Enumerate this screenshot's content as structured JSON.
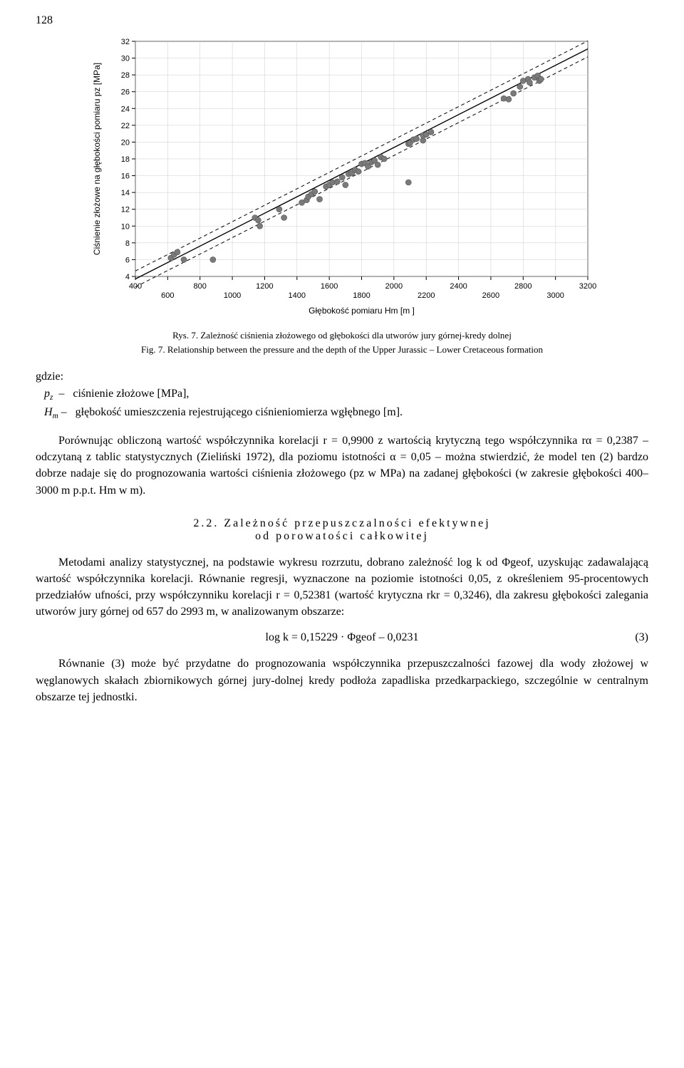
{
  "page_number": "128",
  "chart": {
    "type": "scatter-with-regression",
    "ylabel": "Ciśnienie złożowe na głębokości pomiaru pz [MPa]",
    "xlabel": "Głębokość pomiaru Hm [m ]",
    "ylim": [
      4,
      32
    ],
    "yticks": [
      4,
      6,
      8,
      10,
      12,
      14,
      16,
      18,
      20,
      22,
      24,
      26,
      28,
      30,
      32
    ],
    "xlim": [
      400,
      3200
    ],
    "xticks_top": [
      400,
      800,
      1200,
      1600,
      2000,
      2400,
      2800,
      3200
    ],
    "xticks_bottom": [
      600,
      1000,
      1400,
      1800,
      2200,
      2600,
      3000
    ],
    "background_color": "#ffffff",
    "grid_color": "#cccccc",
    "axis_color": "#000000",
    "marker_color": "#7a7a7a",
    "marker_stroke": "#555555",
    "line_color": "#000000",
    "band_color": "#000000",
    "marker_radius": 4,
    "label_fontsize": 12,
    "tick_fontsize": 11,
    "points": [
      [
        620,
        6.2
      ],
      [
        640,
        6.6
      ],
      [
        660,
        6.9
      ],
      [
        700,
        6.0
      ],
      [
        880,
        6.0
      ],
      [
        1140,
        11.0
      ],
      [
        1160,
        10.7
      ],
      [
        1170,
        10.0
      ],
      [
        1290,
        12.0
      ],
      [
        1320,
        11.0
      ],
      [
        1430,
        12.8
      ],
      [
        1460,
        13.1
      ],
      [
        1470,
        13.5
      ],
      [
        1490,
        13.8
      ],
      [
        1510,
        14.1
      ],
      [
        1540,
        13.2
      ],
      [
        1580,
        14.7
      ],
      [
        1600,
        14.9
      ],
      [
        1620,
        15.2
      ],
      [
        1650,
        15.3
      ],
      [
        1680,
        15.8
      ],
      [
        1700,
        14.9
      ],
      [
        1720,
        16.2
      ],
      [
        1740,
        16.3
      ],
      [
        1760,
        16.7
      ],
      [
        1780,
        16.5
      ],
      [
        1800,
        17.4
      ],
      [
        1820,
        17.5
      ],
      [
        1840,
        17.1
      ],
      [
        1860,
        17.6
      ],
      [
        1880,
        17.8
      ],
      [
        1900,
        17.3
      ],
      [
        1920,
        18.2
      ],
      [
        1940,
        18.0
      ],
      [
        2090,
        15.2
      ],
      [
        2090,
        19.8
      ],
      [
        2100,
        19.9
      ],
      [
        2120,
        20.3
      ],
      [
        2140,
        20.4
      ],
      [
        2180,
        20.2
      ],
      [
        2180,
        20.8
      ],
      [
        2200,
        20.9
      ],
      [
        2230,
        21.2
      ],
      [
        2680,
        25.2
      ],
      [
        2710,
        25.1
      ],
      [
        2740,
        25.8
      ],
      [
        2780,
        26.6
      ],
      [
        2800,
        27.3
      ],
      [
        2830,
        27.5
      ],
      [
        2840,
        27.1
      ],
      [
        2870,
        27.7
      ],
      [
        2890,
        27.9
      ],
      [
        2900,
        27.3
      ],
      [
        2910,
        27.5
      ]
    ],
    "reg_x": [
      400,
      3200
    ],
    "reg_y": [
      3.7,
      31.1
    ],
    "band_offset_y": 0.95
  },
  "captions": {
    "rys_label": "Rys. 7. Zależność ciśnienia złożowego od głębokości dla utworów jury górnej-kredy dolnej",
    "fig_label": "Fig. 7. Relationship between the pressure and the depth of the Upper Jurassic – Lower Cretaceous formation"
  },
  "where": {
    "intro": "gdzie:",
    "pz_sym": "p",
    "pz_sub": "z",
    "pz_dash": "–",
    "pz_def": "ciśnienie złożowe [MPa],",
    "hm_sym": "H",
    "hm_sub": "m",
    "hm_dash": "–",
    "hm_def": "głębokość umieszczenia rejestrującego ciśnieniomierza wgłębnego [m]."
  },
  "para1": "Porównując obliczoną wartość współczynnika korelacji r = 0,9900 z wartością krytyczną tego współczynnika rα = 0,2387 – odczytaną z tablic statystycznych (Zieliński 1972), dla poziomu istotności α = 0,05 – można stwierdzić, że model ten (2) bardzo dobrze nadaje się do prognozowania wartości ciśnienia złożowego (pz w MPa) na zadanej głębokości (w zakresie głębokości 400–3000 m p.p.t. Hm w m).",
  "section": {
    "line1": "2.2.  Zależność  przepuszczalności  efektywnej",
    "line2": "od  porowatości  całkowitej"
  },
  "para2": "Metodami analizy statystycznej, na podstawie wykresu rozrzutu, dobrano zależność log k od Φgeof, uzyskując zadawalającą wartość współczynnika korelacji. Równanie regresji, wyznaczone na poziomie istotności 0,05, z określeniem 95-procentowych przedziałów ufności, przy współczynniku korelacji r = 0,52381 (wartość krytyczna rkr = 0,3246), dla zakresu głębokości zalegania utworów jury górnej od 657 do 2993 m, w analizowanym obszarze:",
  "equation": {
    "text": "log k = 0,15229 · Φgeof – 0,0231",
    "number": "(3)"
  },
  "para3": "Równanie (3) może być przydatne do prognozowania współczynnika przepuszczalności fazowej dla wody złożowej w węglanowych skałach zbiornikowych górnej jury-dolnej kredy podłoża zapadliska przedkarpackiego, szczególnie w centralnym obszarze tej jednostki."
}
